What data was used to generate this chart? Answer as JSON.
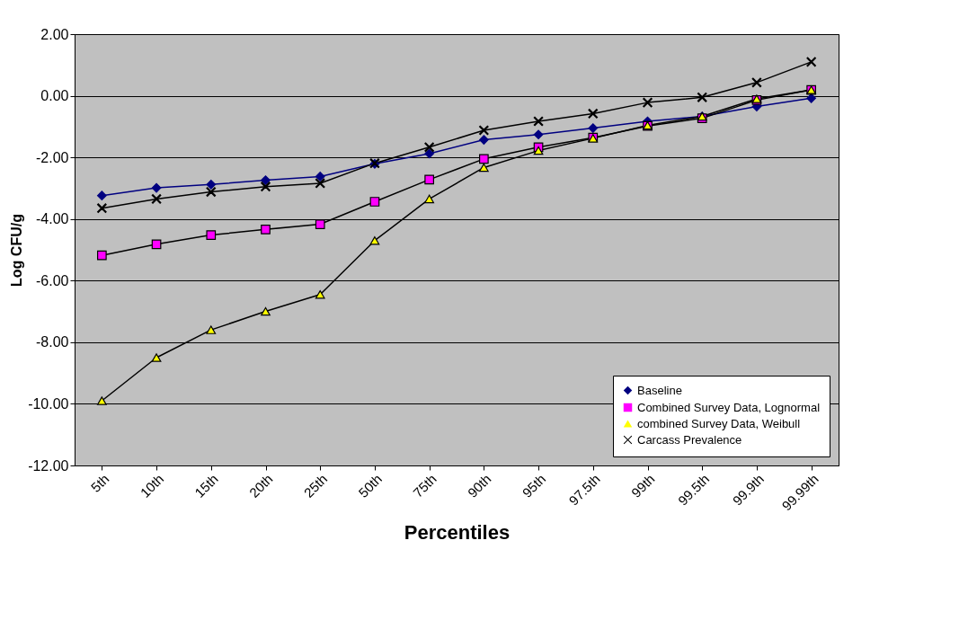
{
  "chart_data": {
    "type": "line",
    "xlabel": "Percentiles",
    "ylabel": "Log CFU/g",
    "categories": [
      "5th",
      "10th",
      "15th",
      "20th",
      "25th",
      "50th",
      "75th",
      "90th",
      "95th",
      "97.5th",
      "99th",
      "99.5th",
      "99.9th",
      "99.99th"
    ],
    "series": [
      {
        "name": "Baseline",
        "color": "#000080",
        "marker": "diamond",
        "values": [
          -3.24,
          -2.99,
          -2.88,
          -2.74,
          -2.62,
          -2.21,
          -1.88,
          -1.43,
          -1.26,
          -1.05,
          -0.83,
          -0.67,
          -0.35,
          -0.08
        ]
      },
      {
        "name": "Combined Survey Data, Lognormal",
        "color": "#ff00ff",
        "marker": "square",
        "values": [
          -5.18,
          -4.82,
          -4.52,
          -4.34,
          -4.17,
          -3.44,
          -2.72,
          -2.05,
          -1.67,
          -1.36,
          -0.98,
          -0.73,
          -0.14,
          0.19
        ]
      },
      {
        "name": "combined Survey Data, Weibull",
        "color": "#ffff00",
        "marker": "triangle",
        "values": [
          -9.9,
          -8.5,
          -7.6,
          -7.0,
          -6.45,
          -4.7,
          -3.35,
          -2.33,
          -1.78,
          -1.38,
          -0.96,
          -0.67,
          -0.1,
          0.19
        ]
      },
      {
        "name": "Carcass Prevalence",
        "color": "#000000",
        "marker": "cross",
        "values": [
          -3.65,
          -3.35,
          -3.12,
          -2.95,
          -2.84,
          -2.19,
          -1.67,
          -1.12,
          -0.83,
          -0.58,
          -0.22,
          -0.05,
          0.43,
          1.1
        ]
      }
    ],
    "ylim": [
      -12,
      2
    ],
    "yticks": [
      {
        "value": -12,
        "label": "-12.00"
      },
      {
        "value": -10,
        "label": "-10.00"
      },
      {
        "value": -8,
        "label": "-8.00"
      },
      {
        "value": -6,
        "label": "-6.00"
      },
      {
        "value": -4,
        "label": "-4.00"
      },
      {
        "value": -2,
        "label": "-2.00"
      },
      {
        "value": 0,
        "label": "0.00"
      },
      {
        "value": 2,
        "label": "2.00"
      }
    ],
    "grid": "y",
    "legend": "bottom right",
    "line_style": "solid"
  }
}
